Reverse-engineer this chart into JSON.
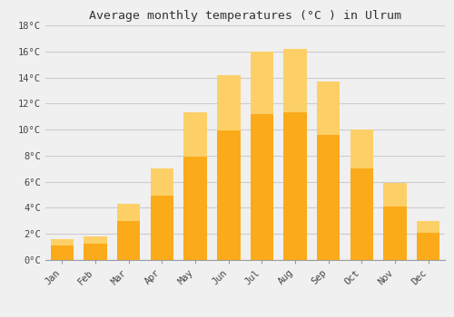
{
  "title": "Average monthly temperatures (°C ) in Ulrum",
  "months": [
    "Jan",
    "Feb",
    "Mar",
    "Apr",
    "May",
    "Jun",
    "Jul",
    "Aug",
    "Sep",
    "Oct",
    "Nov",
    "Dec"
  ],
  "temperatures": [
    1.6,
    1.8,
    4.3,
    7.0,
    11.3,
    14.2,
    16.0,
    16.2,
    13.7,
    10.0,
    5.9,
    3.0
  ],
  "bar_color_main": "#FBAA1A",
  "bar_color_light": "#FDD067",
  "background_color": "#F0F0F0",
  "grid_color": "#CCCCCC",
  "ylim": [
    0,
    18
  ],
  "yticks": [
    0,
    2,
    4,
    6,
    8,
    10,
    12,
    14,
    16,
    18
  ],
  "ytick_labels": [
    "0°C",
    "2°C",
    "4°C",
    "6°C",
    "8°C",
    "10°C",
    "12°C",
    "14°C",
    "16°C",
    "18°C"
  ],
  "title_fontsize": 9.5,
  "tick_fontsize": 7.5,
  "font_family": "monospace",
  "bar_width": 0.7
}
